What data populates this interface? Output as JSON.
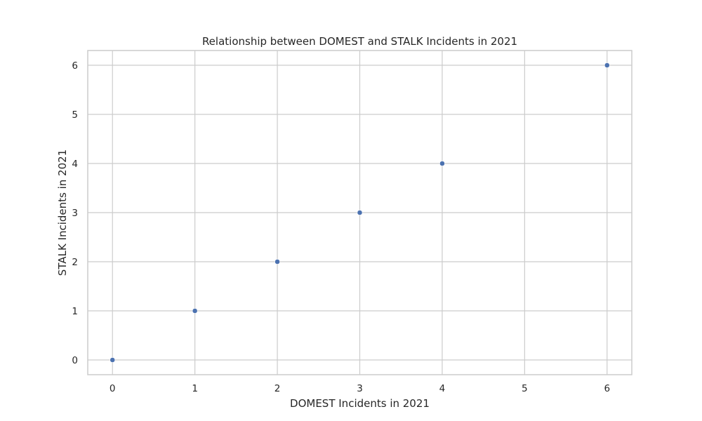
{
  "chart_data": {
    "type": "scatter",
    "title": "Relationship between DOMEST and STALK Incidents in 2021",
    "xlabel": "DOMEST Incidents in 2021",
    "ylabel": "STALK Incidents in 2021",
    "xlim": [
      -0.3,
      6.3
    ],
    "ylim": [
      -0.3,
      6.3
    ],
    "xticks": [
      0,
      1,
      2,
      3,
      4,
      5,
      6
    ],
    "yticks": [
      0,
      1,
      2,
      3,
      4,
      5,
      6
    ],
    "grid": true,
    "series": [
      {
        "points": [
          {
            "x": 0,
            "y": 0
          },
          {
            "x": 1,
            "y": 1
          },
          {
            "x": 2,
            "y": 2
          },
          {
            "x": 3,
            "y": 3
          },
          {
            "x": 4,
            "y": 4
          },
          {
            "x": 6,
            "y": 6
          }
        ],
        "color": "#4c72b0"
      }
    ],
    "colors": {
      "grid": "#cccccc",
      "frame": "#cccccc",
      "text": "#262626"
    }
  }
}
